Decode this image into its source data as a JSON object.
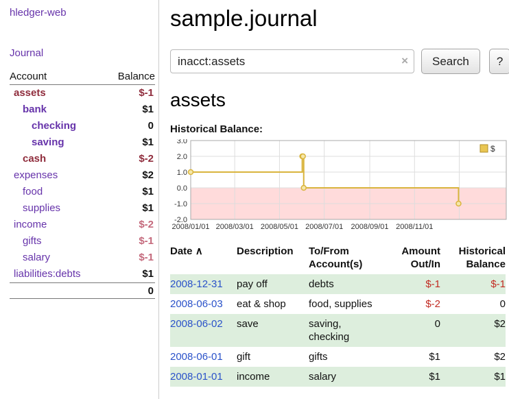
{
  "app_title": "hledger-web",
  "sidebar": {
    "journal_link": "Journal",
    "accounts_table": {
      "col_account": "Account",
      "col_balance": "Balance",
      "rows": [
        {
          "name": "assets",
          "balance": "$-1",
          "depth": 0,
          "bold": true,
          "name_style": "neg-strong",
          "balance_style": "neg-strong"
        },
        {
          "name": "bank",
          "balance": "$1",
          "depth": 1,
          "bold": true,
          "name_style": "link",
          "balance_style": "normal"
        },
        {
          "name": "checking",
          "balance": "0",
          "depth": 2,
          "bold": true,
          "name_style": "link",
          "balance_style": "normal"
        },
        {
          "name": "saving",
          "balance": "$1",
          "depth": 2,
          "bold": true,
          "name_style": "link",
          "balance_style": "normal"
        },
        {
          "name": "cash",
          "balance": "$-2",
          "depth": 1,
          "bold": true,
          "name_style": "neg-strong",
          "balance_style": "neg-strong"
        },
        {
          "name": "expenses",
          "balance": "$2",
          "depth": 0,
          "bold": false,
          "name_style": "link",
          "balance_style": "normal"
        },
        {
          "name": "food",
          "balance": "$1",
          "depth": 1,
          "bold": false,
          "name_style": "link",
          "balance_style": "normal"
        },
        {
          "name": "supplies",
          "balance": "$1",
          "depth": 1,
          "bold": false,
          "name_style": "link",
          "balance_style": "normal"
        },
        {
          "name": "income",
          "balance": "$-2",
          "depth": 0,
          "bold": false,
          "name_style": "link",
          "balance_style": "neg-weak"
        },
        {
          "name": "gifts",
          "balance": "$-1",
          "depth": 1,
          "bold": false,
          "name_style": "link",
          "balance_style": "neg-weak"
        },
        {
          "name": "salary",
          "balance": "$-1",
          "depth": 1,
          "bold": false,
          "name_style": "link",
          "balance_style": "neg-weak"
        },
        {
          "name": "liabilities:debts",
          "balance": "$1",
          "depth": 0,
          "bold": false,
          "name_style": "link",
          "balance_style": "normal"
        }
      ],
      "total": "0"
    }
  },
  "main": {
    "title": "sample.journal",
    "search": {
      "value": "inacct:assets",
      "clear_icon": "×",
      "search_button": "Search",
      "help_button": "?"
    },
    "account_heading": "assets",
    "chart_title": "Historical Balance:"
  },
  "chart_data": {
    "type": "line",
    "line_style": "step-after",
    "title": "Historical Balance",
    "legend": [
      {
        "label": "$",
        "color": "#e9c653"
      }
    ],
    "ylim": [
      -2.0,
      3.0
    ],
    "y_ticks": [
      "3.0",
      "2.0",
      "1.0",
      "0.0",
      "-1.0",
      "-2.0"
    ],
    "y_tick_values": [
      3,
      2,
      1,
      0,
      -1,
      -2
    ],
    "x_domain_days": [
      0,
      430
    ],
    "x_ticks": [
      {
        "label": "2008/01/01",
        "day": 0
      },
      {
        "label": "2008/03/01",
        "day": 60
      },
      {
        "label": "2008/05/01",
        "day": 121
      },
      {
        "label": "2008/07/01",
        "day": 182
      },
      {
        "label": "2008/09/01",
        "day": 244
      },
      {
        "label": "2008/11/01",
        "day": 305
      },
      {
        "label": "",
        "day": 366
      }
    ],
    "points": [
      {
        "date": "2008-01-01",
        "day": 0,
        "value": 1
      },
      {
        "date": "2008-06-01",
        "day": 152,
        "value": 2
      },
      {
        "date": "2008-06-02",
        "day": 153,
        "value": 2
      },
      {
        "date": "2008-06-03",
        "day": 154,
        "value": 0
      },
      {
        "date": "2008-12-31",
        "day": 365,
        "value": -1
      }
    ],
    "colors": {
      "line": "#d9b43c",
      "marker_fill": "#f6e7a9",
      "negative_region": "#ffdbdb",
      "grid": "#dddddd",
      "border": "#aaaaaa",
      "legend_border": "#b08f28"
    }
  },
  "transactions": {
    "headers": {
      "date": "Date",
      "sort_icon": "∧",
      "description": "Description",
      "account": [
        "To/From",
        "Account(s)"
      ],
      "amount": [
        "Amount",
        "Out/In"
      ],
      "balance": [
        "Historical",
        "Balance"
      ]
    },
    "rows": [
      {
        "date": "2008-12-31",
        "description": "pay off",
        "account": "debts",
        "amount": "$-1",
        "balance": "$-1"
      },
      {
        "date": "2008-06-03",
        "description": "eat & shop",
        "account": "food, supplies",
        "amount": "$-2",
        "balance": "0"
      },
      {
        "date": "2008-06-02",
        "description": "save",
        "account": "saving, checking",
        "amount": "0",
        "balance": "$2"
      },
      {
        "date": "2008-06-01",
        "description": "gift",
        "account": "gifts",
        "amount": "$1",
        "balance": "$2"
      },
      {
        "date": "2008-01-01",
        "description": "income",
        "account": "salary",
        "amount": "$1",
        "balance": "$1"
      }
    ]
  },
  "colors": {
    "link_purple": "#6633aa",
    "link_blue": "#2a52c9",
    "neg_strong": "#8f2c3c",
    "neg_weak": "#c4697c",
    "neg_table": "#c22b22",
    "row_green": "#ddeedd"
  }
}
